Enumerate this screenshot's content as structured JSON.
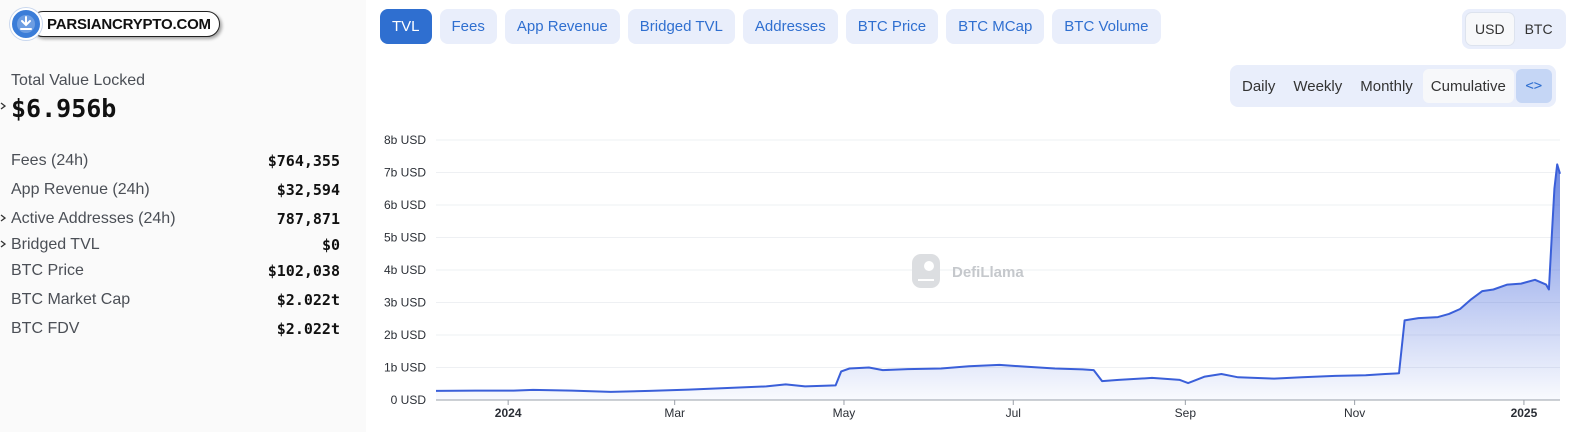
{
  "header": {
    "site_badge": "PARSIANCRYPTO.COM"
  },
  "summary": {
    "tvl_label": "Total Value Locked",
    "tvl_value": "$6.956b",
    "stats": [
      {
        "label": "Fees (24h)",
        "value": "$764,355",
        "expandable": false
      },
      {
        "label": "App Revenue (24h)",
        "value": "$32,594",
        "expandable": false
      },
      {
        "label": "Active Addresses (24h)",
        "value": "787,871",
        "expandable": true
      },
      {
        "label": "Bridged TVL",
        "value": "$0",
        "expandable": true
      },
      {
        "label": "BTC Price",
        "value": "$102,038",
        "expandable": false
      },
      {
        "label": "BTC Market Cap",
        "value": "$2.022t",
        "expandable": false
      },
      {
        "label": "BTC FDV",
        "value": "$2.022t",
        "expandable": false
      }
    ]
  },
  "tabs": [
    {
      "label": "TVL",
      "active": true
    },
    {
      "label": "Fees",
      "active": false
    },
    {
      "label": "App Revenue",
      "active": false
    },
    {
      "label": "Bridged TVL",
      "active": false
    },
    {
      "label": "Addresses",
      "active": false
    },
    {
      "label": "BTC Price",
      "active": false
    },
    {
      "label": "BTC MCap",
      "active": false
    },
    {
      "label": "BTC Volume",
      "active": false
    }
  ],
  "currency_toggle": [
    {
      "label": "USD",
      "active": true
    },
    {
      "label": "BTC",
      "active": false
    }
  ],
  "period_toggle": [
    {
      "label": "Daily",
      "active": false
    },
    {
      "label": "Weekly",
      "active": false
    },
    {
      "label": "Monthly",
      "active": false
    },
    {
      "label": "Cumulative",
      "active": true
    }
  ],
  "embed_icon": "code-brackets-icon",
  "watermark": "DefiLlama",
  "colors": {
    "accent": "#2f6fd0",
    "line": "#3a5fd9",
    "tab_bg": "#e9eefb"
  },
  "chart_data": {
    "type": "area",
    "y_unit": "USD",
    "ylim": [
      0,
      8
    ],
    "y_ticks": [
      {
        "value": 0,
        "label": "0 USD"
      },
      {
        "value": 1,
        "label": "1b USD"
      },
      {
        "value": 2,
        "label": "2b USD"
      },
      {
        "value": 3,
        "label": "3b USD"
      },
      {
        "value": 4,
        "label": "4b USD"
      },
      {
        "value": 5,
        "label": "5b USD"
      },
      {
        "value": 6,
        "label": "6b USD"
      },
      {
        "value": 7,
        "label": "7b USD"
      },
      {
        "value": 8,
        "label": "8b USD"
      }
    ],
    "xlim": [
      "2023-12-06",
      "2025-01-14"
    ],
    "x_ticks": [
      {
        "date": "2024-01-01",
        "label": "2024",
        "bold": true
      },
      {
        "date": "2024-03-01",
        "label": "Mar",
        "bold": false
      },
      {
        "date": "2024-05-01",
        "label": "May",
        "bold": false
      },
      {
        "date": "2024-07-01",
        "label": "Jul",
        "bold": false
      },
      {
        "date": "2024-09-01",
        "label": "Sep",
        "bold": false
      },
      {
        "date": "2024-11-01",
        "label": "Nov",
        "bold": false
      },
      {
        "date": "2025-01-01",
        "label": "2025",
        "bold": true
      }
    ],
    "grid": true,
    "series": [
      {
        "values_in": "billions USD",
        "points": [
          [
            "2023-12-06",
            0.28
          ],
          [
            "2023-12-20",
            0.29
          ],
          [
            "2024-01-03",
            0.29
          ],
          [
            "2024-01-10",
            0.31
          ],
          [
            "2024-01-24",
            0.29
          ],
          [
            "2024-02-07",
            0.25
          ],
          [
            "2024-02-21",
            0.28
          ],
          [
            "2024-03-06",
            0.32
          ],
          [
            "2024-03-20",
            0.37
          ],
          [
            "2024-04-03",
            0.42
          ],
          [
            "2024-04-10",
            0.48
          ],
          [
            "2024-04-17",
            0.42
          ],
          [
            "2024-04-24",
            0.44
          ],
          [
            "2024-04-28",
            0.45
          ],
          [
            "2024-04-30",
            0.88
          ],
          [
            "2024-05-03",
            0.97
          ],
          [
            "2024-05-10",
            1.0
          ],
          [
            "2024-05-15",
            0.92
          ],
          [
            "2024-05-24",
            0.95
          ],
          [
            "2024-06-05",
            0.97
          ],
          [
            "2024-06-15",
            1.04
          ],
          [
            "2024-06-26",
            1.08
          ],
          [
            "2024-07-06",
            1.02
          ],
          [
            "2024-07-16",
            0.97
          ],
          [
            "2024-07-26",
            0.94
          ],
          [
            "2024-07-30",
            0.92
          ],
          [
            "2024-08-02",
            0.58
          ],
          [
            "2024-08-08",
            0.62
          ],
          [
            "2024-08-20",
            0.68
          ],
          [
            "2024-08-30",
            0.62
          ],
          [
            "2024-09-02",
            0.52
          ],
          [
            "2024-09-08",
            0.72
          ],
          [
            "2024-09-14",
            0.8
          ],
          [
            "2024-09-20",
            0.7
          ],
          [
            "2024-10-03",
            0.66
          ],
          [
            "2024-10-13",
            0.7
          ],
          [
            "2024-10-25",
            0.74
          ],
          [
            "2024-11-05",
            0.76
          ],
          [
            "2024-11-12",
            0.8
          ],
          [
            "2024-11-17",
            0.82
          ],
          [
            "2024-11-19",
            2.45
          ],
          [
            "2024-11-24",
            2.52
          ],
          [
            "2024-12-01",
            2.55
          ],
          [
            "2024-12-05",
            2.65
          ],
          [
            "2024-12-09",
            2.8
          ],
          [
            "2024-12-13",
            3.1
          ],
          [
            "2024-12-17",
            3.35
          ],
          [
            "2024-12-21",
            3.4
          ],
          [
            "2024-12-26",
            3.55
          ],
          [
            "2024-12-31",
            3.58
          ],
          [
            "2025-01-05",
            3.7
          ],
          [
            "2025-01-09",
            3.55
          ],
          [
            "2025-01-10",
            3.4
          ],
          [
            "2025-01-11",
            5.0
          ],
          [
            "2025-01-12",
            6.5
          ],
          [
            "2025-01-13",
            7.25
          ],
          [
            "2025-01-14",
            6.96
          ]
        ]
      }
    ]
  }
}
